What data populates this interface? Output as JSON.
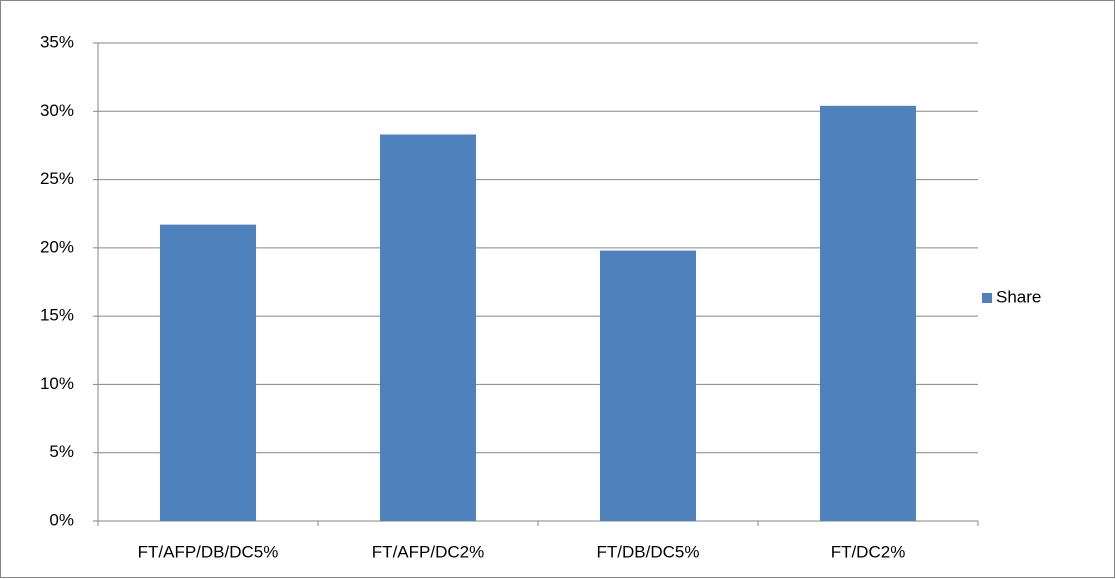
{
  "chart_data": {
    "type": "bar",
    "categories": [
      "FT/AFP/DB/DC5%",
      "FT/AFP/DC2%",
      "FT/DB/DC5%",
      "FT/DC2%"
    ],
    "series": [
      {
        "name": "Share",
        "color": "#4f81bd",
        "values": [
          21.7,
          28.3,
          19.8,
          30.4
        ]
      }
    ],
    "ylim": [
      0,
      35
    ],
    "yticks": [
      {
        "value": 0,
        "label": "0%"
      },
      {
        "value": 5,
        "label": "5%"
      },
      {
        "value": 10,
        "label": "10%"
      },
      {
        "value": 15,
        "label": "15%"
      },
      {
        "value": 20,
        "label": "20%"
      },
      {
        "value": 25,
        "label": "25%"
      },
      {
        "value": 30,
        "label": "30%"
      },
      {
        "value": 35,
        "label": "35%"
      }
    ],
    "grid": true,
    "legend": "right"
  }
}
